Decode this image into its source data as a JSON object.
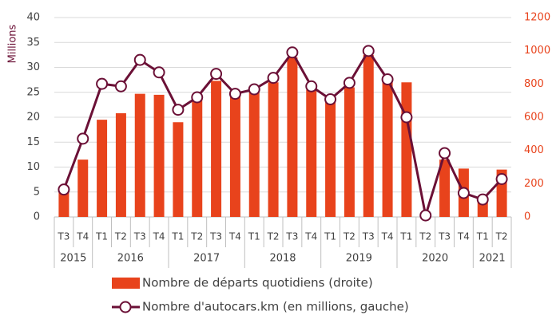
{
  "chart_data": {
    "type": "bar-line",
    "y_label": "Millions",
    "year_groups": [
      {
        "label": "2015",
        "quarters": [
          "T3",
          "T4"
        ]
      },
      {
        "label": "2016",
        "quarters": [
          "T1",
          "T2",
          "T3",
          "T4"
        ]
      },
      {
        "label": "2017",
        "quarters": [
          "T1",
          "T2",
          "T3",
          "T4"
        ]
      },
      {
        "label": "2018",
        "quarters": [
          "T1",
          "T2",
          "T3",
          "T4"
        ]
      },
      {
        "label": "2019",
        "quarters": [
          "T1",
          "T2",
          "T3",
          "T4"
        ]
      },
      {
        "label": "2020",
        "quarters": [
          "T1",
          "T2",
          "T3",
          "T4"
        ]
      },
      {
        "label": "2021",
        "quarters": [
          "T1",
          "T2"
        ]
      }
    ],
    "series": [
      {
        "name": "Nombre de départs quotidiens (droite)",
        "type": "bar",
        "axis": "y2",
        "color": "#e8431c",
        "values": [
          165,
          345,
          585,
          624,
          741,
          735,
          570,
          705,
          819,
          750,
          750,
          810,
          960,
          765,
          690,
          780,
          975,
          810,
          810,
          15,
          345,
          291,
          90,
          285
        ]
      },
      {
        "name": "Nombre d'autocars.km (en millions, gauche)",
        "type": "line",
        "axis": "y",
        "color": "#6b1036",
        "values": [
          5.5,
          15.7,
          26.7,
          26.2,
          31.5,
          29,
          21.5,
          24,
          28.7,
          24.7,
          25.6,
          27.9,
          33,
          26.2,
          23.6,
          26.9,
          33.3,
          27.6,
          20,
          0.3,
          12.8,
          4.8,
          3.5,
          7.6
        ]
      }
    ],
    "ylim": [
      0,
      40
    ],
    "yticks": [
      0,
      5,
      10,
      15,
      20,
      25,
      30,
      35,
      40
    ],
    "y2lim": [
      0,
      1200
    ],
    "y2ticks": [
      0,
      200,
      400,
      600,
      800,
      1000,
      1200
    ],
    "grid": true
  }
}
